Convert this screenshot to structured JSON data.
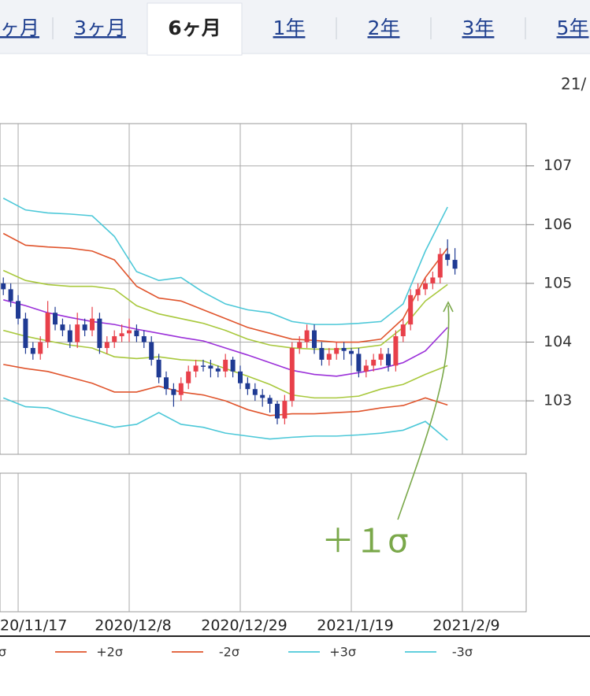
{
  "tabs": [
    "ヶ月",
    "3ヶ月",
    "6ヶ月",
    "1年",
    "2年",
    "3年",
    "5年"
  ],
  "active_tab": 2,
  "corner_label": "21/",
  "chart_data": {
    "type": "candlestick",
    "xlim": [
      -2.45,
      68.62
    ],
    "ylim": [
      102.09,
      107.72
    ],
    "xticks": [
      {
        "value": 0,
        "label": "20/11/17"
      },
      {
        "value": 15,
        "label": "2020/12/8"
      },
      {
        "value": 30,
        "label": "2020/12/29"
      },
      {
        "value": 45,
        "label": "2021/1/19"
      },
      {
        "value": 60,
        "label": "2021/2/9"
      }
    ],
    "yticks": [
      103,
      104,
      105,
      106,
      107
    ],
    "grid": true,
    "up_color": "#e8404a",
    "down_color": "#1f3a93",
    "candle_x": [
      -2,
      -1,
      0,
      1,
      2,
      3,
      4,
      5,
      6,
      7,
      8,
      9,
      10,
      11,
      12,
      13,
      14,
      15,
      16,
      17,
      18,
      19,
      20,
      21,
      22,
      23,
      24,
      25,
      26,
      27,
      28,
      29,
      30,
      31,
      32,
      33,
      34,
      35,
      36,
      37,
      38,
      39,
      40,
      41,
      42,
      43,
      44,
      45,
      46,
      47,
      48,
      49,
      50,
      51,
      52,
      53,
      54,
      55,
      56,
      57,
      58,
      59
    ],
    "candles": [
      [
        105.0,
        105.1,
        104.8,
        104.9
      ],
      [
        104.9,
        105.0,
        104.6,
        104.7
      ],
      [
        104.7,
        104.8,
        104.3,
        104.4
      ],
      [
        104.4,
        104.5,
        103.8,
        103.9
      ],
      [
        103.9,
        104.0,
        103.7,
        103.8
      ],
      [
        103.8,
        104.1,
        103.7,
        104.0
      ],
      [
        104.0,
        104.7,
        103.9,
        104.5
      ],
      [
        104.5,
        104.6,
        104.2,
        104.3
      ],
      [
        104.3,
        104.4,
        104.1,
        104.2
      ],
      [
        104.2,
        104.3,
        103.9,
        104.0
      ],
      [
        104.0,
        104.5,
        103.9,
        104.3
      ],
      [
        104.3,
        104.4,
        104.1,
        104.2
      ],
      [
        104.2,
        104.6,
        104.1,
        104.4
      ],
      [
        104.4,
        104.5,
        103.8,
        103.9
      ],
      [
        103.9,
        104.1,
        103.8,
        104.0
      ],
      [
        104.0,
        104.2,
        103.9,
        104.1
      ],
      [
        104.1,
        104.3,
        104.0,
        104.15
      ],
      [
        104.15,
        104.4,
        104.0,
        104.2
      ],
      [
        104.2,
        104.3,
        104.0,
        104.1
      ],
      [
        104.1,
        104.2,
        103.9,
        104.0
      ],
      [
        104.0,
        104.1,
        103.6,
        103.7
      ],
      [
        103.7,
        103.8,
        103.3,
        103.4
      ],
      [
        103.4,
        103.5,
        103.1,
        103.2
      ],
      [
        103.2,
        103.3,
        102.9,
        103.1
      ],
      [
        103.1,
        103.4,
        103.0,
        103.3
      ],
      [
        103.3,
        103.6,
        103.2,
        103.5
      ],
      [
        103.5,
        103.7,
        103.4,
        103.6
      ],
      [
        103.6,
        103.7,
        103.5,
        103.6
      ],
      [
        103.6,
        103.7,
        103.4,
        103.55
      ],
      [
        103.55,
        103.6,
        103.4,
        103.5
      ],
      [
        103.5,
        103.8,
        103.4,
        103.7
      ],
      [
        103.7,
        103.75,
        103.4,
        103.5
      ],
      [
        103.5,
        103.6,
        103.2,
        103.3
      ],
      [
        103.3,
        103.4,
        103.1,
        103.2
      ],
      [
        103.2,
        103.3,
        103.0,
        103.1
      ],
      [
        103.1,
        103.2,
        102.9,
        103.05
      ],
      [
        103.05,
        103.1,
        102.8,
        102.95
      ],
      [
        102.95,
        103.0,
        102.6,
        102.7
      ],
      [
        102.7,
        103.1,
        102.6,
        103.0
      ],
      [
        103.0,
        104.0,
        102.9,
        103.9
      ],
      [
        103.9,
        104.1,
        103.8,
        104.0
      ],
      [
        104.0,
        104.3,
        103.9,
        104.2
      ],
      [
        104.2,
        104.3,
        103.8,
        103.9
      ],
      [
        103.9,
        104.0,
        103.6,
        103.7
      ],
      [
        103.7,
        103.9,
        103.6,
        103.8
      ],
      [
        103.8,
        104.0,
        103.7,
        103.9
      ],
      [
        103.9,
        104.0,
        103.7,
        103.85
      ],
      [
        103.85,
        103.9,
        103.6,
        103.8
      ],
      [
        103.8,
        103.9,
        103.4,
        103.5
      ],
      [
        103.5,
        103.7,
        103.4,
        103.6
      ],
      [
        103.6,
        103.8,
        103.5,
        103.7
      ],
      [
        103.7,
        103.9,
        103.6,
        103.8
      ],
      [
        103.8,
        103.9,
        103.5,
        103.6
      ],
      [
        103.6,
        104.2,
        103.5,
        104.1
      ],
      [
        104.1,
        104.4,
        104.0,
        104.3
      ],
      [
        104.3,
        104.9,
        104.2,
        104.8
      ],
      [
        104.8,
        105.0,
        104.7,
        104.9
      ],
      [
        104.9,
        105.1,
        104.8,
        105.0
      ],
      [
        105.0,
        105.2,
        104.9,
        105.1
      ],
      [
        105.1,
        105.6,
        105.0,
        105.5
      ],
      [
        105.5,
        105.75,
        105.3,
        105.4
      ],
      [
        105.4,
        105.6,
        105.15,
        105.25
      ]
    ],
    "band_x": [
      -2,
      1,
      4,
      7,
      10,
      13,
      16,
      19,
      22,
      25,
      28,
      31,
      34,
      37,
      40,
      43,
      46,
      49,
      52,
      55,
      58
    ],
    "series": [
      {
        "color": "#9b30d9",
        "values": [
          104.72,
          104.62,
          104.5,
          104.42,
          104.35,
          104.3,
          104.22,
          104.15,
          104.08,
          104.02,
          103.9,
          103.78,
          103.65,
          103.52,
          103.45,
          103.42,
          103.48,
          103.55,
          103.65,
          103.85,
          104.25
        ]
      },
      {
        "color": "#a8c83c",
        "values": [
          105.22,
          105.05,
          104.98,
          104.95,
          104.95,
          104.9,
          104.62,
          104.48,
          104.4,
          104.32,
          104.2,
          104.05,
          103.95,
          103.9,
          103.88,
          103.88,
          103.9,
          103.95,
          104.25,
          104.7,
          104.98
        ]
      },
      {
        "name": "σ",
        "color": "#a8c83c",
        "values": [
          104.2,
          104.1,
          104.02,
          103.95,
          103.9,
          103.75,
          103.72,
          103.75,
          103.7,
          103.68,
          103.55,
          103.42,
          103.28,
          103.1,
          103.05,
          103.05,
          103.08,
          103.2,
          103.28,
          103.45,
          103.6
        ]
      },
      {
        "name": "+2σ",
        "color": "#e0542c",
        "values": [
          105.85,
          105.65,
          105.62,
          105.6,
          105.55,
          105.4,
          104.95,
          104.75,
          104.7,
          104.55,
          104.4,
          104.25,
          104.15,
          104.05,
          104.03,
          104.0,
          104.0,
          104.05,
          104.4,
          105.1,
          105.6
        ]
      },
      {
        "name": "-2σ",
        "color": "#e0542c",
        "values": [
          103.62,
          103.55,
          103.5,
          103.4,
          103.3,
          103.15,
          103.15,
          103.25,
          103.15,
          103.1,
          103.0,
          102.85,
          102.75,
          102.78,
          102.78,
          102.8,
          102.82,
          102.88,
          102.92,
          103.05,
          102.93
        ]
      },
      {
        "name": "+3σ",
        "color": "#4cc8d8",
        "values": [
          106.45,
          106.25,
          106.2,
          106.18,
          106.15,
          105.8,
          105.2,
          105.05,
          105.1,
          104.85,
          104.65,
          104.55,
          104.5,
          104.35,
          104.3,
          104.3,
          104.32,
          104.35,
          104.65,
          105.55,
          106.3
        ]
      },
      {
        "name": "-3σ",
        "color": "#4cc8d8",
        "values": [
          103.05,
          102.9,
          102.88,
          102.75,
          102.65,
          102.55,
          102.6,
          102.8,
          102.6,
          102.55,
          102.45,
          102.4,
          102.35,
          102.38,
          102.4,
          102.4,
          102.42,
          102.45,
          102.5,
          102.65,
          102.33
        ]
      }
    ],
    "annotation": "＋１σ"
  }
}
